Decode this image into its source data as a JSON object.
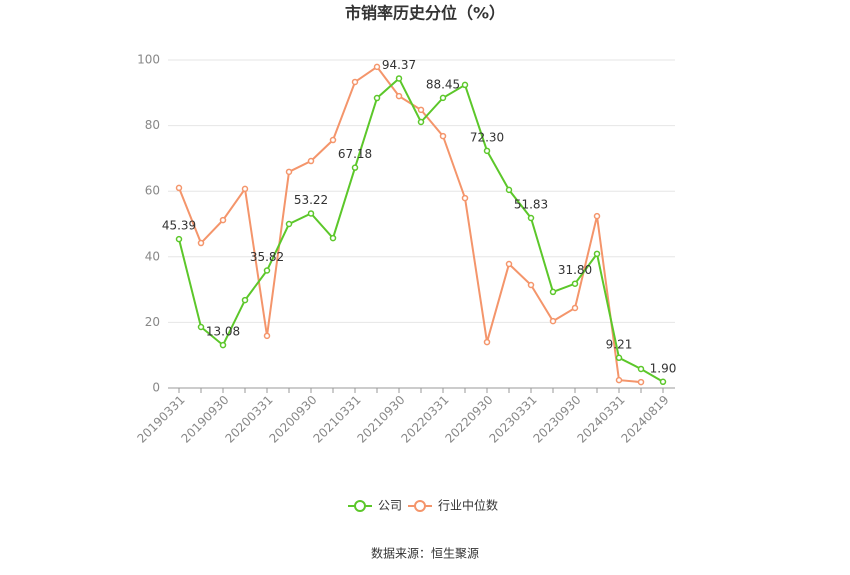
{
  "chart_data": {
    "type": "line",
    "title": "市销率历史分位（%）",
    "categories": [
      "20190331",
      null,
      "20190930",
      null,
      "20200331",
      null,
      "20200930",
      null,
      "20210331",
      null,
      "20210930",
      null,
      "20220331",
      null,
      "20220930",
      null,
      "20230331",
      null,
      "20230930",
      null,
      "20240331",
      null,
      "20240819"
    ],
    "series": [
      {
        "name": "公司",
        "color": "#5cc72a",
        "values": [
          45.39,
          18.6,
          13.08,
          26.8,
          35.82,
          50.0,
          53.22,
          45.7,
          67.18,
          88.4,
          94.37,
          81.1,
          88.45,
          92.4,
          72.3,
          60.4,
          51.83,
          29.3,
          31.8,
          40.9,
          9.21,
          5.8,
          1.9
        ],
        "value_labels": [
          "45.39",
          null,
          "13.08",
          null,
          "35.82",
          null,
          "53.22",
          null,
          "67.18",
          null,
          "94.37",
          null,
          "88.45",
          null,
          "72.30",
          null,
          "51.83",
          null,
          "31.80",
          null,
          "9.21",
          null,
          "1.90"
        ]
      },
      {
        "name": "行业中位数",
        "color": "#f4956b",
        "values": [
          61.0,
          44.2,
          51.2,
          60.7,
          15.9,
          65.9,
          69.2,
          75.6,
          93.3,
          97.9,
          89.0,
          84.8,
          76.8,
          57.9,
          14.0,
          37.8,
          31.4,
          20.4,
          24.4,
          52.4,
          2.4,
          1.8,
          null
        ]
      }
    ],
    "ylim": [
      0,
      100
    ],
    "yticks": [
      0,
      20,
      40,
      60,
      80,
      100
    ],
    "grid": true,
    "legend": "bottom",
    "source": "数据来源：恒生聚源"
  }
}
